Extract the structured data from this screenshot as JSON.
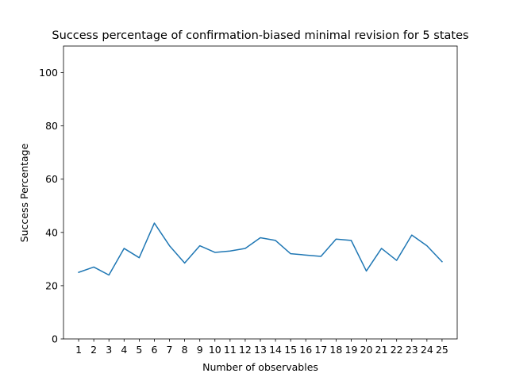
{
  "chart_data": {
    "type": "line",
    "title": "Success percentage of confirmation-biased minimal revision for 5 states",
    "xlabel": "Number of observables",
    "ylabel": "Success Percentage",
    "x": [
      1,
      2,
      3,
      4,
      5,
      6,
      7,
      8,
      9,
      10,
      11,
      12,
      13,
      14,
      15,
      16,
      17,
      18,
      19,
      20,
      21,
      22,
      23,
      24,
      25
    ],
    "series": [
      {
        "color": "#1f77b4",
        "values": [
          25,
          27,
          24,
          34,
          30.5,
          43.5,
          35,
          28.5,
          35,
          32.5,
          33,
          34,
          38,
          37,
          32,
          31.5,
          31,
          37.5,
          37,
          25.5,
          34,
          29.5,
          39,
          35,
          29
        ]
      }
    ],
    "xlim": [
      0,
      26
    ],
    "ylim": [
      0,
      110
    ],
    "yticks": [
      0,
      20,
      40,
      60,
      80,
      100
    ],
    "xticks": [
      "1",
      "2",
      "3",
      "4",
      "5",
      "6",
      "7",
      "8",
      "9",
      "10",
      "11",
      "12",
      "13",
      "14",
      "15",
      "16",
      "17",
      "18",
      "19",
      "20",
      "21",
      "22",
      "23",
      "24",
      "25"
    ],
    "grid": false
  }
}
